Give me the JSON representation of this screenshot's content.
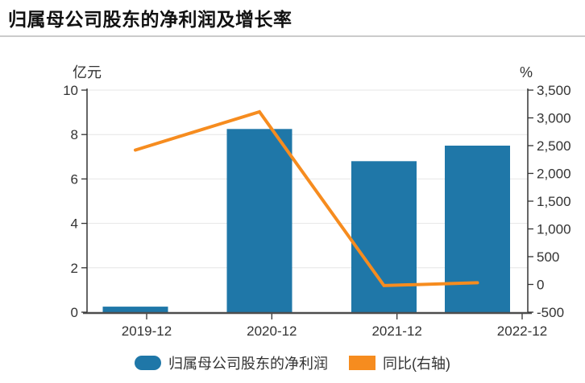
{
  "header": {
    "title": "归属母公司股东的净利润及增长率"
  },
  "chart_data": {
    "type": "bar",
    "subtype": "bar+line combo, dual axis",
    "title": "归属母公司股东的净利润及增长率",
    "categories": [
      "2019-12",
      "2020-12",
      "2021-12",
      "2022-12"
    ],
    "series": [
      {
        "name": "归属母公司股东的净利润",
        "type": "bar",
        "axis": "left",
        "unit": "亿元",
        "color": "#1f77a8",
        "values": [
          0.25,
          8.25,
          6.8,
          7.5
        ]
      },
      {
        "name": "同比(右轴)",
        "type": "line",
        "axis": "right",
        "unit": "%",
        "color": "#f68c1f",
        "values": [
          2420,
          3110,
          -20,
          30
        ]
      }
    ],
    "left_axis": {
      "unit": "亿元",
      "min": 0,
      "max": 10,
      "ticks": [
        0,
        2,
        4,
        6,
        8,
        10
      ],
      "tick_labels": [
        "0",
        "2",
        "4",
        "6",
        "8",
        "10"
      ]
    },
    "right_axis": {
      "unit": "%",
      "min": -500,
      "max": 3500,
      "ticks": [
        -500,
        0,
        500,
        1000,
        1500,
        2000,
        2500,
        3000,
        3500
      ],
      "tick_labels": [
        "-500",
        "0",
        "500",
        "1,000",
        "1,500",
        "2,000",
        "2,500",
        "3,000",
        "3,500"
      ]
    },
    "grid": true,
    "legend_position": "bottom"
  },
  "legend": {
    "items": [
      {
        "label": "归属母公司股东的净利润",
        "color": "#1f77a8",
        "marker": "rounded-rect"
      },
      {
        "label": "同比(右轴)",
        "color": "#f68c1f",
        "marker": "rect"
      }
    ]
  },
  "colors": {
    "bar": "#1f77a8",
    "line": "#f68c1f",
    "grid": "#e6e6e6",
    "axis": "#333333",
    "x_axis": "#4d4d4d",
    "divider": "#cbcbcb",
    "text": "#333333"
  }
}
